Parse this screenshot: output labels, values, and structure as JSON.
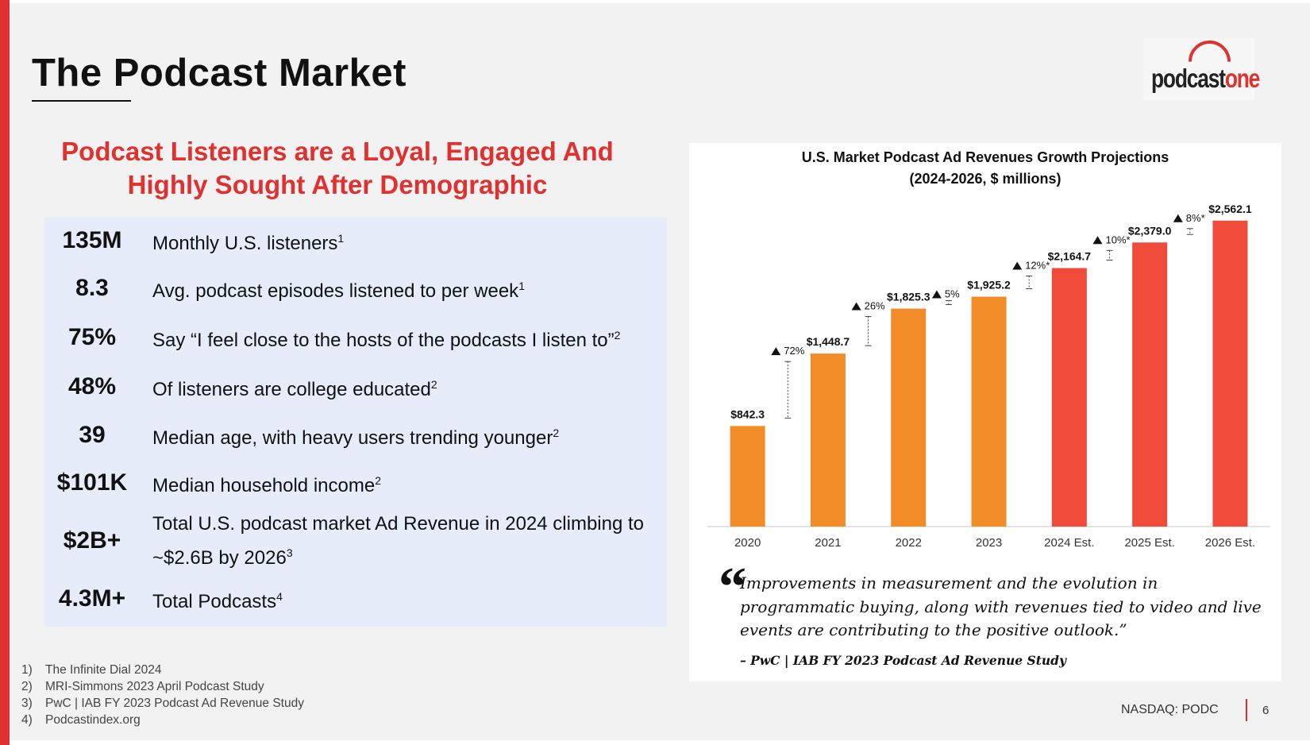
{
  "slide": {
    "title": "The Podcast Market",
    "logo": {
      "part1": "podcast",
      "part2": "one"
    },
    "subtitle_line1": "Podcast Listeners are a Loyal, Engaged And",
    "subtitle_line2": "Highly Sought After Demographic",
    "accent_color": "#e03131"
  },
  "stats": [
    {
      "value": "135M",
      "text": "Monthly U.S. listeners",
      "ref": "1"
    },
    {
      "value": "8.3",
      "text": "Avg. podcast episodes listened to per week",
      "ref": "1"
    },
    {
      "value": "75%",
      "text": "Say “I feel close to the hosts of the podcasts I listen to”",
      "ref": "2"
    },
    {
      "value": "48%",
      "text": "Of listeners are college educated",
      "ref": "2"
    },
    {
      "value": "39",
      "text": "Median age, with heavy users trending younger",
      "ref": "2"
    },
    {
      "value": "$101K",
      "text": "Median household income",
      "ref": "2"
    },
    {
      "value": "$2B+",
      "text": "Total U.S. podcast market Ad Revenue in 2024 climbing to ~$2.6B by 2026",
      "ref": "3"
    },
    {
      "value": "4.3M+",
      "text": "Total Podcasts",
      "ref": "4"
    }
  ],
  "footnotes": [
    {
      "n": "1)",
      "text": "The Infinite Dial 2024"
    },
    {
      "n": "2)",
      "text": "MRI-Simmons 2023 April Podcast Study"
    },
    {
      "n": "3)",
      "text": "PwC | IAB FY 2023 Podcast Ad Revenue Study"
    },
    {
      "n": "4)",
      "text": "Podcastindex.org"
    }
  ],
  "chart_data": {
    "type": "bar",
    "title": "U.S. Market Podcast Ad Revenues Growth Projections",
    "subtitle": "(2024-2026, $ millions)",
    "categories": [
      "2020",
      "2021",
      "2022",
      "2023",
      "2024 Est.",
      "2025 Est.",
      "2026 Est."
    ],
    "values": [
      842.3,
      1448.7,
      1825.3,
      1925.2,
      2164.7,
      2379.0,
      2562.1
    ],
    "value_labels": [
      "$842.3",
      "$1,448.7",
      "$1,825.3",
      "$1,925.2",
      "$2,164.7",
      "$2,379.0",
      "$2,562.1"
    ],
    "growth_labels": [
      "72%",
      "26%",
      "5%",
      "12%*",
      "10%*",
      "8%*"
    ],
    "colors": [
      "#f28c28",
      "#f28c28",
      "#f28c28",
      "#f28c28",
      "#f04a3a",
      "#f04a3a",
      "#f04a3a"
    ],
    "ylim": [
      0,
      2800
    ],
    "xlabel": "",
    "ylabel": "",
    "grid": false,
    "legend": "none"
  },
  "quote": {
    "mark": "“",
    "text": "Improvements in measurement and the evolution in programmatic buying, along with revenues tied to video and live events are contributing to the positive outlook.”",
    "source": "– PwC | IAB FY 2023 Podcast Ad Revenue Study"
  },
  "footer": {
    "ticker": "NASDAQ: PODC",
    "page": "6"
  }
}
